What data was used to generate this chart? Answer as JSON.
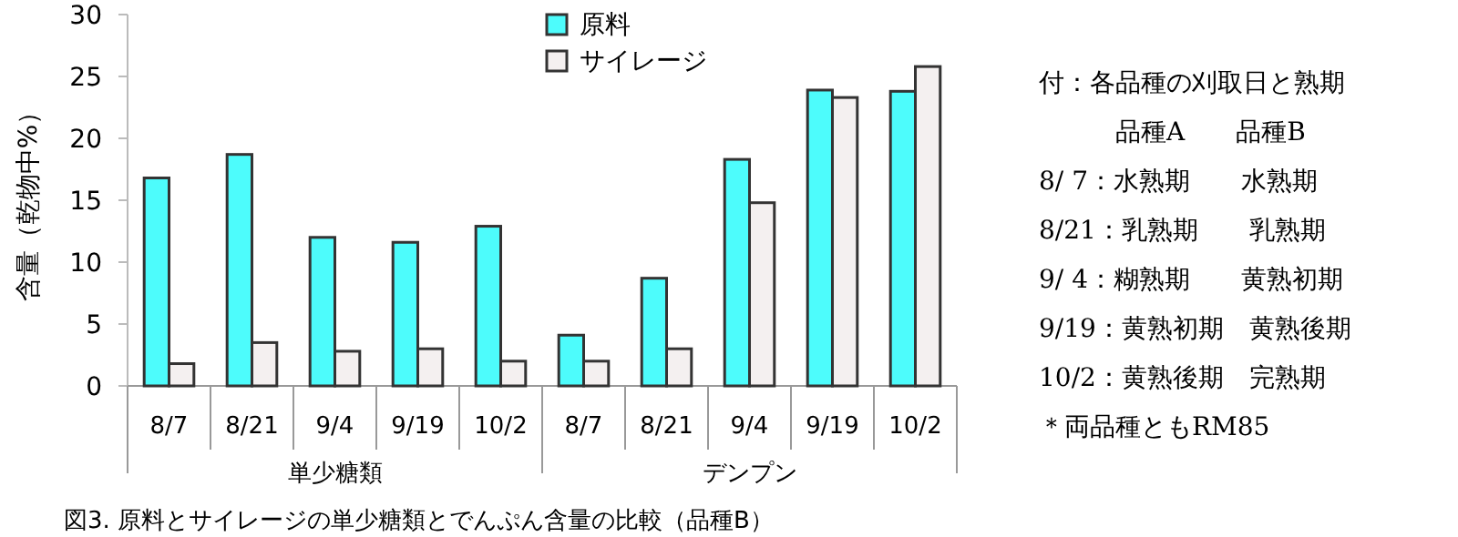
{
  "chart_data": {
    "type": "bar",
    "title": "図3. 原料とサイレージの単少糖類とでんぷん含量の比較（品種B）",
    "ylabel": "含量（乾物中%）",
    "categories": [
      "8/7",
      "8/21",
      "9/4",
      "9/19",
      "10/2",
      "8/7",
      "8/21",
      "9/4",
      "9/19",
      "10/2"
    ],
    "series": [
      {
        "name": "原料",
        "color": "#4dfcfc",
        "values": [
          16.8,
          18.7,
          12.0,
          11.6,
          12.9,
          4.1,
          8.7,
          18.3,
          23.9,
          23.8
        ]
      },
      {
        "name": "サイレージ",
        "color": "#f4f0f0",
        "values": [
          1.8,
          3.5,
          2.8,
          3.0,
          2.0,
          2.0,
          3.0,
          14.8,
          23.3,
          25.8
        ]
      }
    ],
    "ylim": [
      0,
      30
    ],
    "yticks": [
      0,
      5,
      10,
      15,
      20,
      25,
      30
    ],
    "grid": false,
    "legend": "top",
    "annotations": [
      "単少糖類",
      "デンプン",
      "付：各品種の刈取日と熟期",
      "　　　品種A　　品種B",
      "8/ 7：水熟期　　水熟期",
      "8/21：乳熟期　　乳熟期",
      "9/ 4：糊熟期　　黄熟初期",
      "9/19：黄熟初期　黄熟後期",
      "10/2：黄熟後期　完熟期",
      "＊両品種ともRM85"
    ]
  }
}
